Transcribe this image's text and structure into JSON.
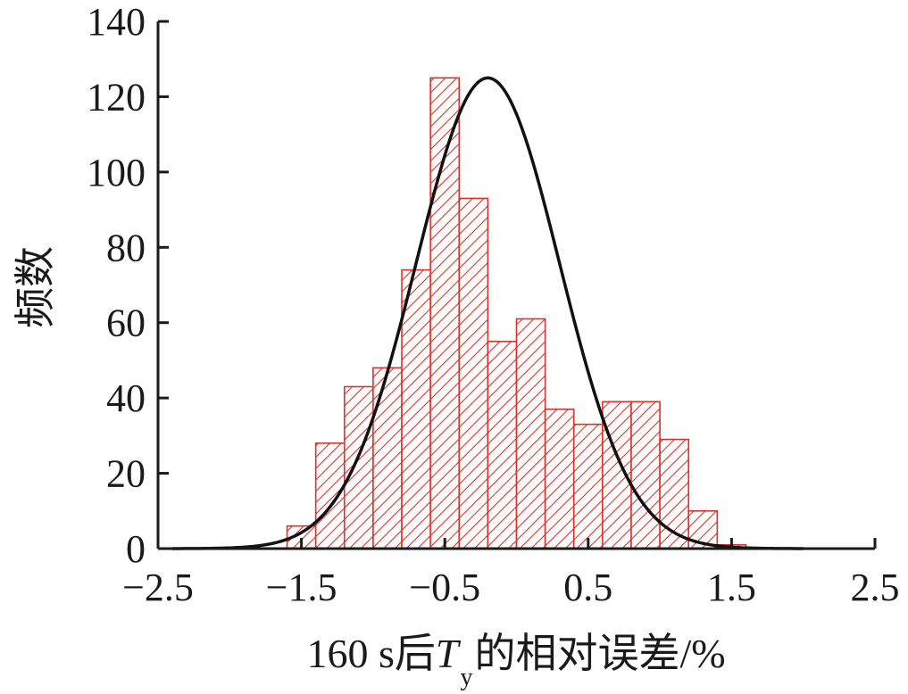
{
  "chart_data": {
    "type": "bar",
    "variant": "histogram with fitted normal curve",
    "bin_width": 0.2,
    "bin_centers": [
      -1.5,
      -1.3,
      -1.1,
      -0.9,
      -0.7,
      -0.5,
      -0.3,
      -0.1,
      0.1,
      0.3,
      0.5,
      0.7,
      0.9,
      1.1,
      1.3,
      1.5
    ],
    "values": [
      6,
      28,
      43,
      48,
      74,
      125,
      93,
      55,
      61,
      37,
      33,
      39,
      39,
      29,
      10,
      1
    ],
    "fit_curve": {
      "distribution": "normal",
      "mean": -0.2,
      "std": 0.5,
      "peak": 125,
      "x_range": [
        -2.4,
        2.0
      ]
    },
    "xlabel": {
      "prefix": "160 s后",
      "var": "T",
      "sub": "y",
      "suffix": "的相对误差/%"
    },
    "ylabel": "频数",
    "xlim": [
      -2.5,
      2.5
    ],
    "ylim": [
      0,
      140
    ],
    "xticks": [
      "−2.5",
      "−1.5",
      "−0.5",
      "0.5",
      "1.5",
      "2.5"
    ],
    "xtick_values": [
      -2.5,
      -1.5,
      -0.5,
      0.5,
      1.5,
      2.5
    ],
    "yticks": [
      "0",
      "20",
      "40",
      "60",
      "80",
      "100",
      "120",
      "140"
    ],
    "ytick_values": [
      0,
      20,
      40,
      60,
      80,
      100,
      120,
      140
    ],
    "grid": false,
    "colors": {
      "bar": "#d9342b",
      "curve": "#111111",
      "axis": "#1a1a1a"
    }
  }
}
